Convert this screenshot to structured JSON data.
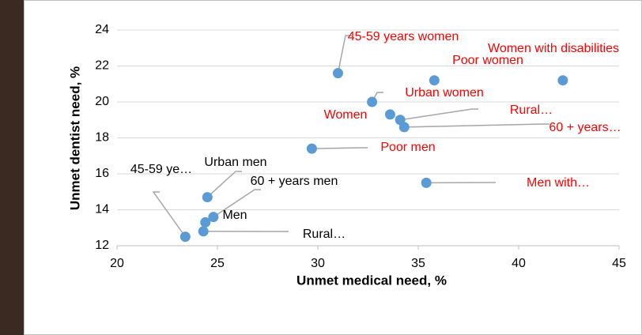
{
  "chart_data": {
    "type": "scatter",
    "x_label": "Unmet medical need, %",
    "y_label": "Unmet dentist need, %",
    "xlim": [
      20,
      45
    ],
    "xticks": [
      20,
      25,
      30,
      35,
      40,
      45
    ],
    "ylim": [
      12,
      24
    ],
    "yticks": [
      12,
      14,
      16,
      18,
      20,
      22,
      24
    ],
    "grid": true,
    "series": [
      {
        "color": "#5b9bd5",
        "x": [
          31.0,
          35.8,
          42.2,
          32.7,
          33.6,
          34.1,
          34.3,
          29.7,
          35.4,
          24.5,
          24.8,
          24.4,
          24.3,
          23.4
        ],
        "values": [
          21.6,
          21.2,
          21.2,
          20.0,
          19.3,
          19.0,
          18.6,
          17.4,
          15.5,
          14.7,
          13.6,
          13.3,
          12.8,
          12.5
        ],
        "labels": [
          "45-59 years women",
          "Poor women",
          "Women with disabilities",
          "Urban women",
          "Women",
          "Rural…",
          "60 + years…",
          "Poor men",
          "Men with…",
          "Urban men",
          "Men",
          "60 + years men",
          "Rural…",
          "45-59 ye…"
        ],
        "label_colors": [
          "#ff0000",
          "#ff0000",
          "#ff0000",
          "#ff0000",
          "#ff0000",
          "#ff0000",
          "#ff0000",
          "#ff0000",
          "#ff0000",
          "#000000",
          "#000000",
          "#000000",
          "#000000",
          "#000000"
        ]
      }
    ]
  }
}
